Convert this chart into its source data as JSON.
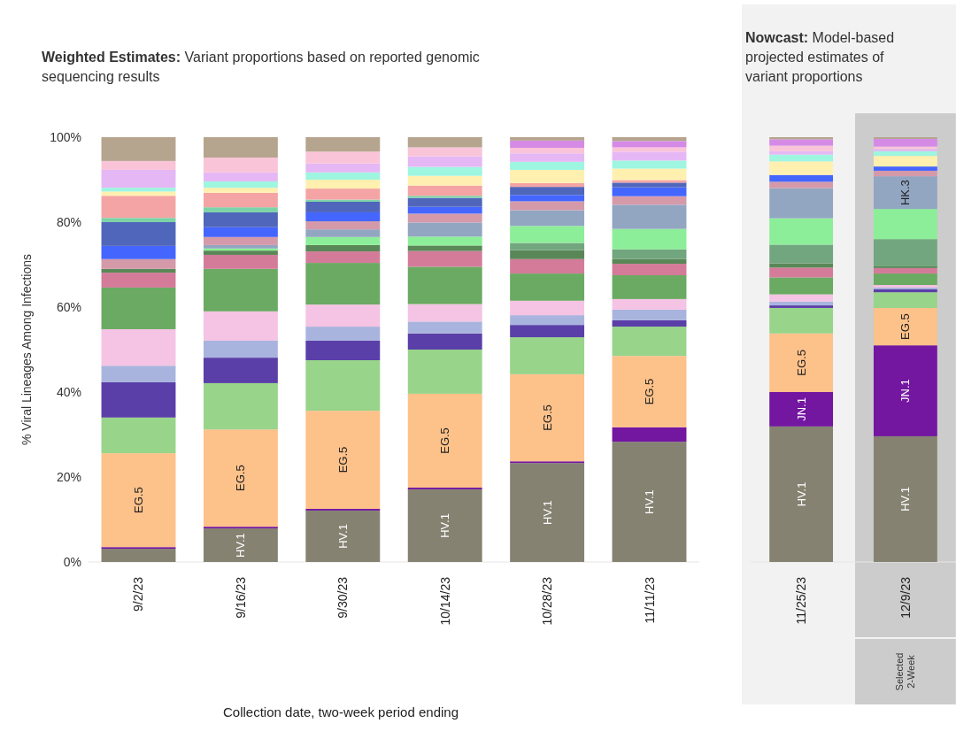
{
  "chart_data": [
    {
      "type": "bar",
      "stacked": true,
      "title": "Weighted Estimates:",
      "subtitle": "Variant proportions based on reported genomic sequencing results",
      "xlabel": "Collection date, two-week period ending",
      "ylabel": "% Viral Lineages Among Infections",
      "categories": [
        "9/2/23",
        "9/16/23",
        "9/30/23",
        "10/14/23",
        "10/28/23",
        "11/11/23"
      ],
      "ylim": [
        0,
        100
      ],
      "yticks": [
        {
          "value": 0,
          "label": "0%"
        },
        {
          "value": 20,
          "label": "20%"
        },
        {
          "value": 40,
          "label": "40%"
        },
        {
          "value": 60,
          "label": "60%"
        },
        {
          "value": 80,
          "label": "80%"
        },
        {
          "value": 100,
          "label": "100%"
        }
      ],
      "grid": false,
      "series": [
        {
          "name": "HV.1",
          "color": "#858272",
          "values": [
            3.1,
            7.9,
            12.1,
            17.1,
            23.3,
            28.3
          ]
        },
        {
          "name": "JN.1",
          "color": "#7316a0",
          "values": [
            0.4,
            0.4,
            0.4,
            0.4,
            0.4,
            3.4
          ]
        },
        {
          "name": "EG.5",
          "color": "#fdc18a",
          "values": [
            22.1,
            22.9,
            23.1,
            22.1,
            20.5,
            16.8
          ]
        },
        {
          "color": "#98d48a",
          "values": [
            8.4,
            10.9,
            11.9,
            10.4,
            8.7,
            6.9
          ]
        },
        {
          "color": "#5b3fa8",
          "values": [
            8.3,
            6.0,
            4.6,
            3.8,
            2.9,
            1.5
          ]
        },
        {
          "color": "#a9b4de",
          "values": [
            3.9,
            4.0,
            3.3,
            2.8,
            2.3,
            2.5
          ]
        },
        {
          "color": "#f5c3e3",
          "values": [
            8.6,
            6.9,
            5.2,
            4.1,
            3.4,
            2.5
          ]
        },
        {
          "color": "#6aaa62",
          "values": [
            9.8,
            10.0,
            9.8,
            8.8,
            6.4,
            5.6
          ]
        },
        {
          "color": "#d47b9a",
          "values": [
            3.5,
            3.3,
            2.7,
            3.7,
            3.4,
            2.7
          ]
        },
        {
          "color": "#5a8757",
          "values": [
            0.9,
            1.0,
            1.5,
            1.3,
            2.1,
            1.1
          ]
        },
        {
          "color": "#72a67e",
          "values": [
            0,
            0,
            0,
            0,
            1.7,
            2.3
          ]
        },
        {
          "color": "#8cee98",
          "values": [
            0,
            0.5,
            1.9,
            2.1,
            4.0,
            4.8
          ]
        },
        {
          "color": "#92a6c2",
          "values": [
            0,
            0.8,
            1.8,
            3.3,
            3.7,
            5.7
          ]
        },
        {
          "color": "#d49aaa",
          "values": [
            2.3,
            1.9,
            1.9,
            2.1,
            2.1,
            2.0
          ]
        },
        {
          "color": "#4466ff",
          "values": [
            3.1,
            2.3,
            2.1,
            1.6,
            1.5,
            2.1
          ]
        },
        {
          "color": "#5066bb",
          "values": [
            5.6,
            3.5,
            2.5,
            2.1,
            1.9,
            1.1
          ]
        },
        {
          "color": "#7dd3a8",
          "values": [
            1.0,
            1.2,
            0.5,
            0.5,
            0,
            0
          ]
        },
        {
          "color": "#f4a4a4",
          "values": [
            5.2,
            3.4,
            2.6,
            2.4,
            0.9,
            0.6
          ]
        },
        {
          "color": "#fff0b0",
          "values": [
            1.0,
            1.2,
            2.1,
            2.3,
            3.1,
            2.7
          ]
        },
        {
          "color": "#9ef5e0",
          "values": [
            0.9,
            1.5,
            1.7,
            2.1,
            1.9,
            1.9
          ]
        },
        {
          "color": "#e5b8f5",
          "values": [
            4.2,
            2.1,
            2.1,
            2.5,
            2.0,
            2.1
          ]
        },
        {
          "color": "#f9c4d8",
          "values": [
            2.1,
            3.5,
            2.8,
            2.1,
            1.3,
            1.0
          ]
        },
        {
          "color": "#d58ae6",
          "values": [
            0,
            0,
            0,
            0,
            1.7,
            1.5
          ]
        },
        {
          "color": "#b5a48e",
          "values": [
            5.6,
            4.8,
            3.4,
            2.4,
            0.8,
            0.9
          ]
        }
      ]
    },
    {
      "type": "bar",
      "stacked": true,
      "title": "Nowcast:",
      "subtitle": "Model-based projected estimates of variant proportions",
      "categories": [
        "11/25/23",
        "12/9/23"
      ],
      "ylim": [
        0,
        100
      ],
      "tick_labels": "x",
      "grid": false,
      "bands": [
        {
          "axis": "x",
          "from": "12/9/23",
          "to": "12/9/23",
          "label": "Selected 2-Week",
          "color": "#cccccc"
        }
      ],
      "series": [
        {
          "name": "HV.1",
          "color": "#858272",
          "values": [
            31.9,
            29.6
          ]
        },
        {
          "name": "JN.1",
          "color": "#7316a0",
          "values": [
            8.1,
            21.4
          ]
        },
        {
          "name": "EG.5",
          "color": "#fdc18a",
          "values": [
            13.8,
            8.8
          ]
        },
        {
          "color": "#98d48a",
          "values": [
            6.0,
            3.7
          ]
        },
        {
          "color": "#5b3fa8",
          "values": [
            0.6,
            0.7
          ]
        },
        {
          "color": "#a9b4de",
          "values": [
            0.9,
            0.4
          ]
        },
        {
          "color": "#f5c3e3",
          "values": [
            1.7,
            0.6
          ]
        },
        {
          "color": "#6aaa62",
          "values": [
            4.0,
            2.7
          ]
        },
        {
          "color": "#d47b9a",
          "values": [
            2.3,
            1.3
          ]
        },
        {
          "color": "#5a8757",
          "values": [
            1.0,
            0.4
          ]
        },
        {
          "color": "#72a67e",
          "values": [
            4.4,
            6.4
          ]
        },
        {
          "color": "#8cee98",
          "values": [
            6.2,
            7.1
          ]
        },
        {
          "name": "HK.3",
          "color": "#92a6c2",
          "values": [
            7.1,
            7.7
          ]
        },
        {
          "color": "#d49aaa",
          "values": [
            1.5,
            1.3
          ]
        },
        {
          "color": "#4466ff",
          "values": [
            1.6,
            1.0
          ]
        },
        {
          "color": "#fff0b0",
          "values": [
            3.2,
            2.5
          ]
        },
        {
          "color": "#9ef5e0",
          "values": [
            1.6,
            1.1
          ]
        },
        {
          "color": "#e5b8f5",
          "values": [
            0.8,
            0.5
          ]
        },
        {
          "color": "#f9c4d8",
          "values": [
            1.3,
            0.6
          ]
        },
        {
          "color": "#d58ae6",
          "values": [
            1.5,
            1.8
          ]
        },
        {
          "color": "#b5a48e",
          "values": [
            0.5,
            0.4
          ]
        }
      ]
    }
  ]
}
